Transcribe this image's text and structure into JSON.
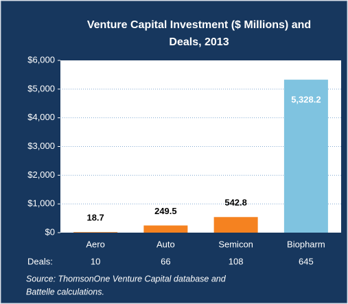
{
  "chart_data": {
    "type": "bar",
    "title": [
      "Venture Capital Investment ($ Millions) and",
      "Deals, 2013"
    ],
    "categories": [
      "Aero",
      "Auto",
      "Semicon",
      "Biopharm"
    ],
    "values": [
      18.7,
      249.5,
      542.8,
      5328.2
    ],
    "value_labels": [
      "18.7",
      "249.5",
      "542.8",
      "5,328.2"
    ],
    "colors": [
      "#f58220",
      "#f58220",
      "#f58220",
      "#7fc3e0"
    ],
    "ylim": [
      0,
      6000
    ],
    "yticks": [
      {
        "value": 0,
        "label": "$0"
      },
      {
        "value": 1000,
        "label": "$1,000"
      },
      {
        "value": 2000,
        "label": "$2,000"
      },
      {
        "value": 3000,
        "label": "$3,000"
      },
      {
        "value": 4000,
        "label": "$4,000"
      },
      {
        "value": 5000,
        "label": "$5,000"
      },
      {
        "value": 6000,
        "label": "$6,000"
      }
    ],
    "grid": true,
    "deals_label": "Deals:",
    "deals": [
      10,
      66,
      108,
      645
    ],
    "source": [
      "Source: ThomsonOne Venture Capital database and",
      "Battelle calculations."
    ]
  }
}
